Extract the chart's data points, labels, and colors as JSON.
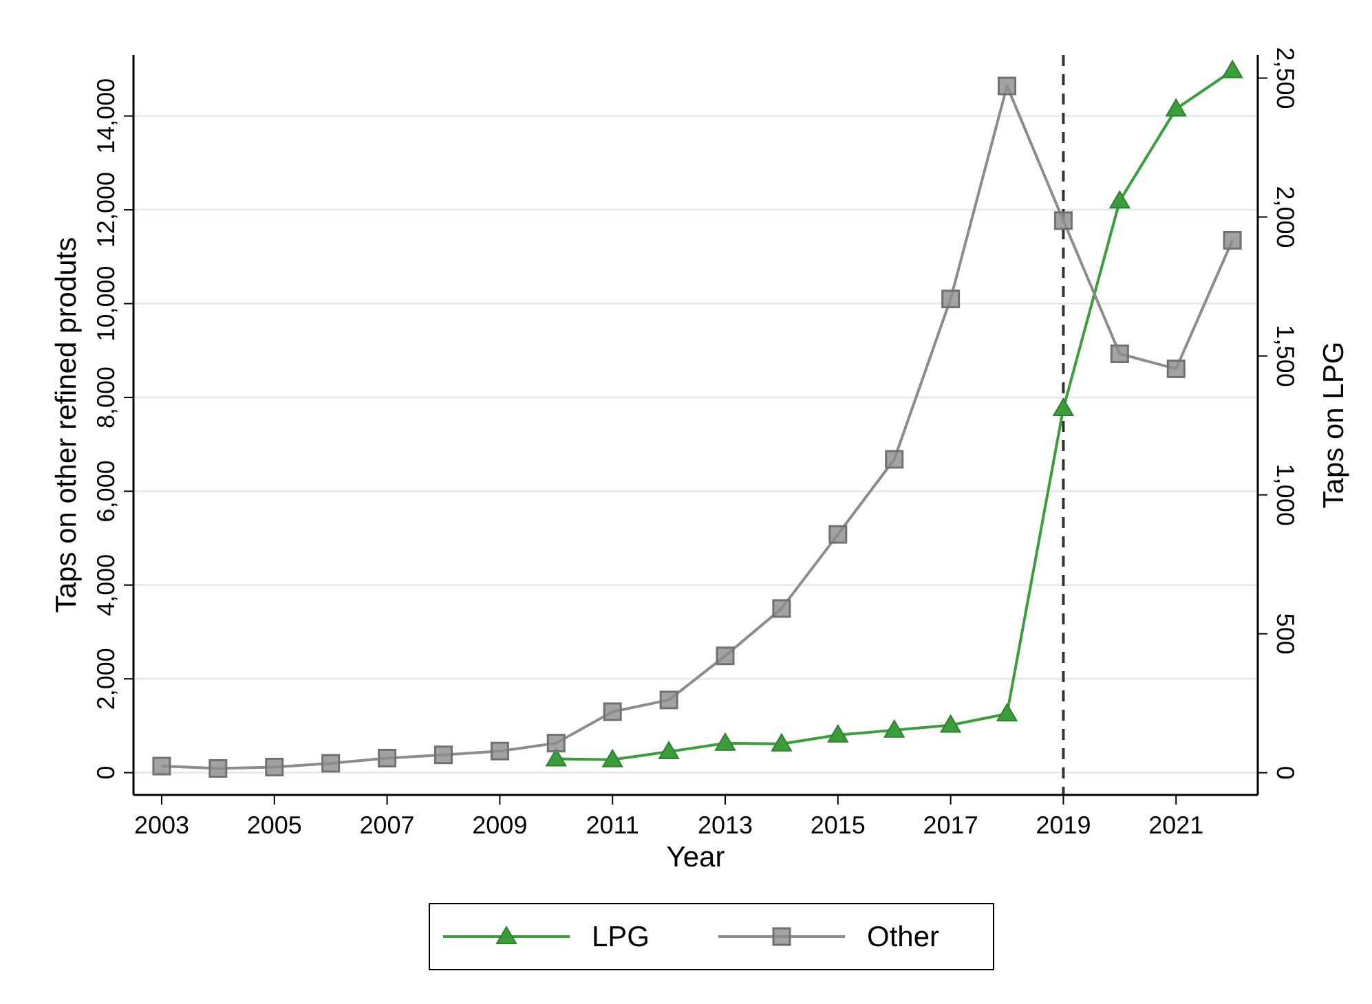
{
  "chart_data": {
    "type": "line",
    "xlabel": "Year",
    "ylabel": "Taps on other refined produts",
    "y2label": "Taps on LPG",
    "x": [
      2003,
      2004,
      2005,
      2006,
      2007,
      2008,
      2009,
      2010,
      2011,
      2012,
      2013,
      2014,
      2015,
      2016,
      2017,
      2018,
      2019,
      2020,
      2021,
      2022
    ],
    "series": [
      {
        "name": "LPG",
        "color": "#3a9e3a",
        "axis": "y2",
        "marker": "triangle",
        "values": [
          null,
          null,
          null,
          null,
          null,
          null,
          null,
          50,
          47,
          76,
          106,
          104,
          136,
          153,
          171,
          212,
          1311,
          2058,
          2389,
          2527
        ]
      },
      {
        "name": "Other",
        "color": "#8c8c8c",
        "marker": "square",
        "values": [
          140,
          90,
          120,
          200,
          310,
          380,
          460,
          630,
          1300,
          1550,
          2490,
          3500,
          5080,
          6680,
          10100,
          14640,
          11770,
          8930,
          8610,
          11350
        ]
      }
    ],
    "xlim": [
      2002.5,
      2022.45
    ],
    "xticks": [
      2003,
      2005,
      2007,
      2009,
      2011,
      2013,
      2015,
      2017,
      2019,
      2021
    ],
    "ylim": [
      -475,
      15300
    ],
    "yticks": [
      {
        "value": 0,
        "label": "0"
      },
      {
        "value": 2000,
        "label": "2,000"
      },
      {
        "value": 4000,
        "label": "4,000"
      },
      {
        "value": 6000,
        "label": "6,000"
      },
      {
        "value": 8000,
        "label": "8,000"
      },
      {
        "value": 10000,
        "label": "10,000"
      },
      {
        "value": 12000,
        "label": "12,000"
      },
      {
        "value": 14000,
        "label": "14,000"
      }
    ],
    "y2lim": [
      -80,
      2583
    ],
    "y2ticks": [
      {
        "value": 0,
        "label": "0"
      },
      {
        "value": 500,
        "label": "500"
      },
      {
        "value": 1000,
        "label": "1,000"
      },
      {
        "value": 1500,
        "label": "1,500"
      },
      {
        "value": 2000,
        "label": "2,000"
      },
      {
        "value": 2500,
        "label": "2,500"
      }
    ],
    "ref_lines": [
      {
        "axis": "x",
        "value": 2019,
        "color": "#333333",
        "line_style": "dashed"
      }
    ],
    "grid": "y",
    "legend": "bottom",
    "line_style": "solid"
  }
}
